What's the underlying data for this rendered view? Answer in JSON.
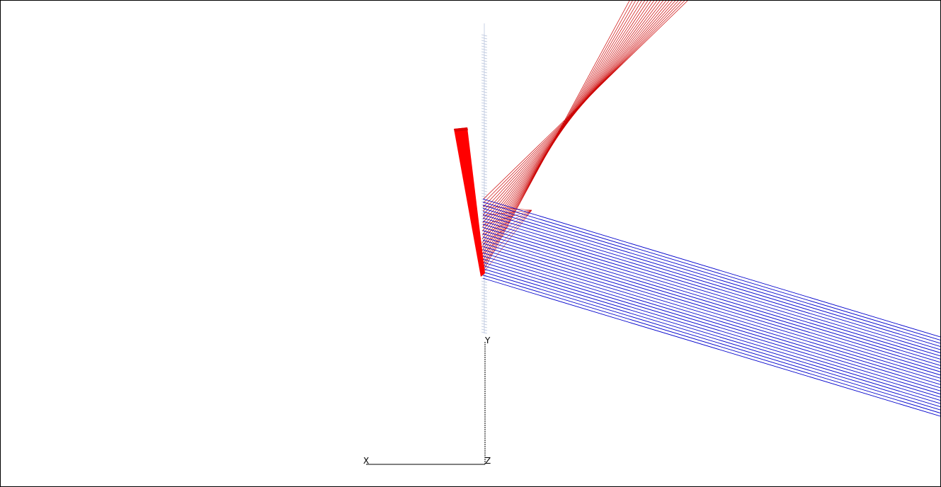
{
  "viewport": {
    "background": "#ffffff",
    "border_color": "#000000"
  },
  "axes": {
    "x_label": "X",
    "y_label": "Y",
    "z_label": "Z",
    "color": "#000000"
  },
  "rays": {
    "incident_color": "#0000cc",
    "reflected_color": "#cc0000",
    "incident_count": 26,
    "reflected_count": 20
  },
  "optics": {
    "mirror_color": "#ff0000",
    "grating_color": "#b8c4dc"
  }
}
